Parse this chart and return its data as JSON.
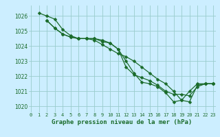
{
  "title": "Graphe pression niveau de la mer (hPa)",
  "bg_color": "#cceeff",
  "grid_color": "#99cccc",
  "line_color": "#1a6b2a",
  "xlim": [
    -0.3,
    23.3
  ],
  "ylim": [
    1019.6,
    1026.7
  ],
  "yticks": [
    1020,
    1021,
    1022,
    1023,
    1024,
    1025,
    1026
  ],
  "xticks": [
    0,
    1,
    2,
    3,
    4,
    5,
    6,
    7,
    8,
    9,
    10,
    11,
    12,
    13,
    14,
    15,
    16,
    17,
    18,
    19,
    20,
    21,
    22,
    23
  ],
  "series": [
    {
      "x": [
        1,
        2,
        3,
        4,
        5,
        6,
        7,
        8,
        9,
        10,
        11,
        12,
        13,
        14,
        15,
        16,
        17,
        18,
        19,
        20,
        21,
        22,
        23
      ],
      "y": [
        1026.2,
        1026.0,
        1025.8,
        1025.1,
        1024.7,
        1024.5,
        1024.5,
        1024.4,
        1024.1,
        1023.8,
        1023.5,
        1023.3,
        1023.0,
        1022.6,
        1022.2,
        1021.8,
        1021.5,
        1021.0,
        1020.4,
        1020.3,
        1021.4,
        1021.5,
        1021.5
      ]
    },
    {
      "x": [
        2,
        3,
        4,
        5,
        6,
        7,
        8,
        9,
        10,
        11,
        12,
        13,
        14,
        15,
        16,
        17,
        18,
        19,
        20,
        21,
        22,
        23
      ],
      "y": [
        1025.7,
        1025.2,
        1024.8,
        1024.6,
        1024.5,
        1024.5,
        1024.5,
        1024.4,
        1024.2,
        1023.8,
        1023.0,
        1022.2,
        1021.6,
        1021.5,
        1021.3,
        1020.9,
        1020.3,
        1020.4,
        1021.0,
        1021.5,
        1021.5,
        1021.5
      ]
    },
    {
      "x": [
        2,
        3,
        4,
        5,
        6,
        7,
        8,
        9,
        10,
        11,
        12,
        13,
        14,
        15,
        16,
        17,
        18,
        19,
        20,
        21,
        22,
        23
      ],
      "y": [
        1025.7,
        1025.2,
        1024.8,
        1024.6,
        1024.5,
        1024.5,
        1024.5,
        1024.3,
        1024.2,
        1023.8,
        1022.6,
        1022.1,
        1021.9,
        1021.7,
        1021.4,
        1021.0,
        1020.8,
        1020.8,
        1020.7,
        1021.3,
        1021.5,
        1021.5
      ]
    }
  ],
  "marker": "D",
  "markersize": 2.5,
  "linewidth": 0.9
}
